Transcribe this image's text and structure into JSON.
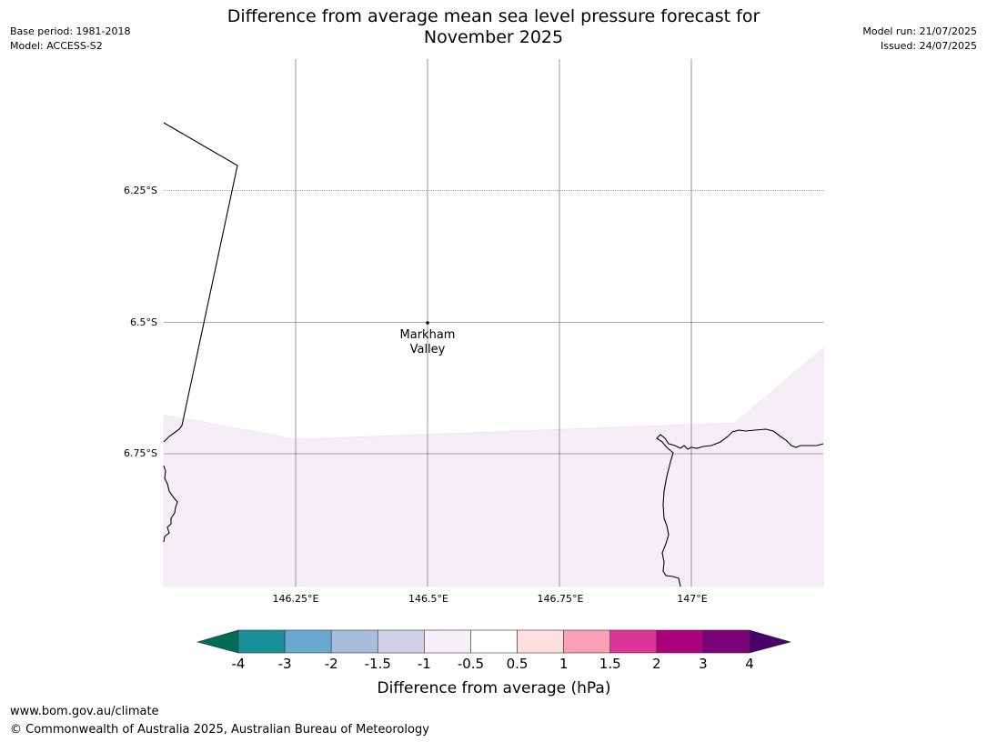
{
  "header": {
    "title_line1": "Difference from average mean sea level pressure forecast for",
    "title_line2": "November 2025",
    "base_period": "Base period: 1981-2018",
    "model": "Model: ACCESS-S2",
    "model_run": "Model run: 21/07/2025",
    "issued": "Issued: 24/07/2025"
  },
  "map": {
    "longitude_labels": [
      "146.25°E",
      "146.5°E",
      "146.75°E",
      "147°E"
    ],
    "latitude_labels": [
      "6.25°S",
      "6.5°S",
      "6.75°S"
    ],
    "place": {
      "name_line1": "Markham",
      "name_line2": "Valley"
    },
    "shading_color": "#f5eef6"
  },
  "colorbar": {
    "tick_labels": [
      "-4",
      "-3",
      "-2",
      "-1.5",
      "-1",
      "-0.5",
      "0.5",
      "1",
      "1.5",
      "2",
      "3",
      "4"
    ],
    "colors": [
      "#1a9099",
      "#67a9cf",
      "#a6bddb",
      "#d0d1e6",
      "#f6eff7",
      "#ffffff",
      "#fde0dd",
      "#fa9fb5",
      "#dd3497",
      "#ae017e",
      "#7a0177"
    ],
    "under_color": "#016c59",
    "over_color": "#49006a",
    "label": "Difference from average (hPa)"
  },
  "footer": {
    "url": "www.bom.gov.au/climate",
    "copyright": "© Commonwealth of Australia 2025, Australian Bureau of Meteorology"
  }
}
